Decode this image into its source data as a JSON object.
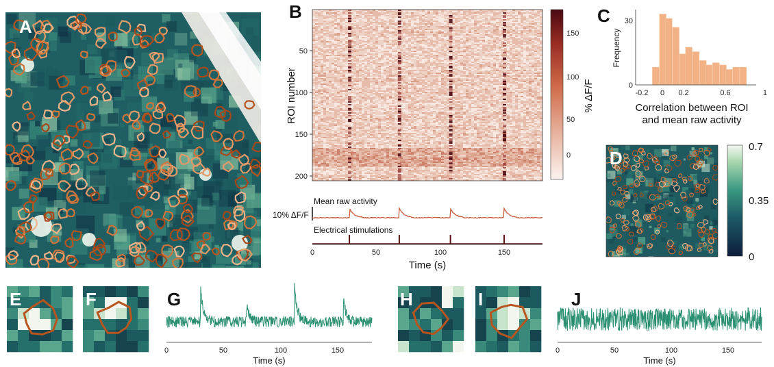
{
  "panels": {
    "A": "A",
    "B": "B",
    "C": "C",
    "D": "D",
    "E": "E",
    "F": "F",
    "G": "G",
    "H": "H",
    "I": "I",
    "J": "J"
  },
  "colors": {
    "teal_dark": "#12394a",
    "teal_mid": "#2a7a70",
    "teal_light": "#cfe6d6",
    "roi_dark": "#b8551e",
    "roi_mid": "#d0743a",
    "roi_light": "#f0b48a",
    "trace": "#c95a3a",
    "trace_green": "#2a8f72",
    "hist_bar": "#f2b285",
    "stim": "#5a1010"
  },
  "heatmap": {
    "ylabel": "ROI number",
    "yticks": [
      "50",
      "100",
      "150",
      "200"
    ],
    "colorbar_label": "% ΔF/F",
    "colorbar_ticks": [
      "150",
      "100",
      "50",
      "0"
    ]
  },
  "traces_b": {
    "mean_label": "Mean raw activity",
    "scale_label": "10% ΔF/F",
    "stim_label": "Electrical stimulations",
    "xticks": [
      "0",
      "50",
      "100",
      "150"
    ],
    "xlabel": "Time (s)"
  },
  "panel_c_text": {
    "ylabel": "Frequency",
    "yticks": [
      "0",
      "30"
    ],
    "xticks": [
      "-0.2",
      "0",
      "0.2",
      "0.6",
      "1"
    ],
    "xlabel_line1": "Correlation between ROI",
    "xlabel_line2": "and mean raw activity"
  },
  "panel_d_colorbar": {
    "ticks": [
      "0.7",
      "0.35",
      "0"
    ]
  },
  "panel_g_text": {
    "xticks": [
      "0",
      "50",
      "100",
      "150"
    ],
    "xlabel": "Time (s)"
  },
  "panel_j_text": {
    "xticks": [
      "0",
      "50",
      "100",
      "150"
    ],
    "xlabel": "Time (s)"
  },
  "chart_data": [
    {
      "type": "heatmap",
      "panel": "B",
      "x": {
        "min": 0,
        "max": 180,
        "unit": "s"
      },
      "y": {
        "min": 1,
        "max": 205
      },
      "color_range": [
        -10,
        180
      ],
      "stimulation_times": [
        29,
        68,
        108,
        150
      ]
    },
    {
      "type": "line",
      "panel": "B-mean",
      "series": [
        {
          "name": "Mean raw activity",
          "peaks_at": [
            29,
            68,
            108,
            150
          ],
          "peak_amplitude": 10
        }
      ],
      "xlim": [
        0,
        180
      ]
    },
    {
      "type": "bar",
      "panel": "C",
      "bin_width": 0.067,
      "bin_centers": [
        -0.05,
        0.02,
        0.08,
        0.15,
        0.22,
        0.28,
        0.35,
        0.42,
        0.48,
        0.55,
        0.62,
        0.68,
        0.75,
        0.82
      ],
      "values": [
        8,
        32,
        30,
        26,
        14,
        17,
        15,
        11,
        9,
        10,
        9,
        7,
        8,
        8
      ],
      "xlim": [
        -0.2,
        0.95
      ],
      "ylim": [
        0,
        34
      ]
    },
    {
      "type": "line",
      "panel": "G",
      "series": [
        {
          "peaks_at": [
            30,
            70,
            112,
            155
          ],
          "peak_heights": [
            0.85,
            0.45,
            1.0,
            0.6
          ]
        }
      ],
      "xlim": [
        0,
        180
      ]
    },
    {
      "type": "line",
      "panel": "J",
      "series": [
        {
          "peaks_at": [],
          "noise_level": 1.0
        }
      ],
      "xlim": [
        0,
        180
      ]
    }
  ]
}
